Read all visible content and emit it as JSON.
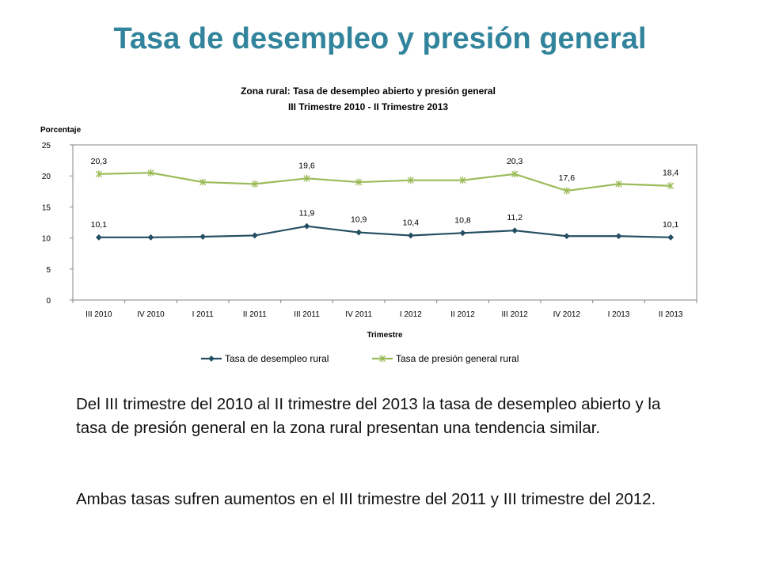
{
  "slide": {
    "title": "Tasa de desempleo y presión general",
    "paragraphs": [
      "Del III trimestre del 2010 al II trimestre del 2013 la tasa de desempleo abierto y la tasa de presión general en la zona rural presentan una tendencia similar.",
      "Ambas tasas sufren aumentos en el III trimestre del 2011 y III trimestre del 2012."
    ]
  },
  "chart_data": {
    "type": "line",
    "title": [
      "Zona rural: Tasa de desempleo abierto y presión general",
      "III Trimestre 2010 - II Trimestre 2013"
    ],
    "ylabel": "Porcentaje",
    "xlabel": "Trimestre",
    "ylim": [
      0,
      25
    ],
    "yticks": [
      "0",
      "5",
      "10",
      "15",
      "20",
      "25"
    ],
    "categories": [
      "III 2010",
      "IV 2010",
      "I 2011",
      "II 2011",
      "III 2011",
      "IV 2011",
      "I 2012",
      "II 2012",
      "III 2012",
      "IV 2012",
      "I 2013",
      "II 2013"
    ],
    "series": [
      {
        "name": "Tasa de desempleo rural",
        "color": "#254f63",
        "marker": "diamond",
        "values": [
          10.1,
          10.1,
          10.2,
          10.4,
          11.9,
          10.9,
          10.4,
          10.8,
          11.2,
          10.3,
          10.3,
          10.1
        ],
        "labels": [
          "10,1",
          "",
          "",
          "",
          "11,9",
          "10,9",
          "10,4",
          "10,8",
          "11,2",
          "",
          "",
          "10,1"
        ]
      },
      {
        "name": "Tasa de presión general rural",
        "color": "#9bbb59",
        "marker": "star",
        "values": [
          20.3,
          20.5,
          19.0,
          18.7,
          19.6,
          19.0,
          19.3,
          19.3,
          20.3,
          17.6,
          18.7,
          18.4
        ],
        "labels": [
          "20,3",
          "",
          "",
          "",
          "19,6",
          "",
          "",
          "",
          "20,3",
          "17,6",
          "",
          "18,4"
        ]
      }
    ],
    "legend": "bottom",
    "grid": false
  }
}
